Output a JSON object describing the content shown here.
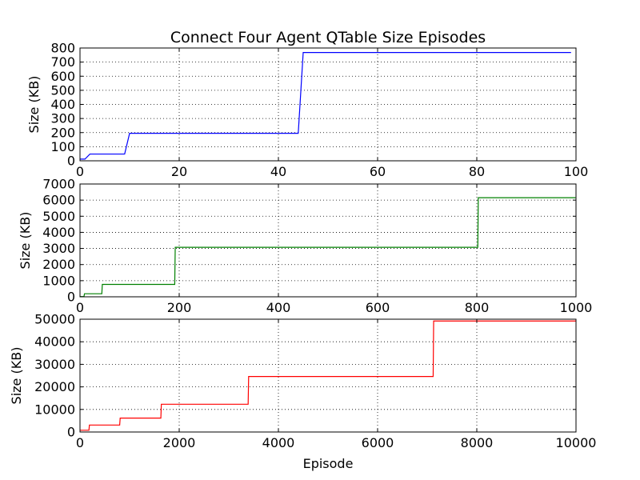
{
  "chart_data": {
    "title": "Connect Four Agent QTable Size Episodes",
    "xlabel": "Episode",
    "grid": true,
    "subplots": [
      {
        "type": "line",
        "step": true,
        "color": "#0000ff",
        "ylabel": "Size (KB)",
        "xlim": [
          0,
          100
        ],
        "ylim": [
          0,
          800
        ],
        "xticks": [
          0,
          20,
          40,
          60,
          80,
          100
        ],
        "yticks": [
          0,
          100,
          200,
          300,
          400,
          500,
          600,
          700,
          800
        ],
        "x": [
          0,
          1,
          2,
          9,
          10,
          44,
          45,
          99
        ],
        "y": [
          12,
          12,
          48,
          48,
          195,
          195,
          768,
          768
        ]
      },
      {
        "type": "line",
        "step": true,
        "color": "#008000",
        "ylabel": "Size (KB)",
        "xlim": [
          0,
          1000
        ],
        "ylim": [
          0,
          7000
        ],
        "xticks": [
          0,
          200,
          400,
          600,
          800,
          1000
        ],
        "yticks": [
          0,
          1000,
          2000,
          3000,
          4000,
          5000,
          6000,
          7000
        ],
        "x": [
          0,
          8,
          9,
          44,
          45,
          191,
          192,
          802,
          803,
          999
        ],
        "y": [
          12,
          12,
          190,
          190,
          770,
          770,
          3070,
          3070,
          6150,
          6150
        ]
      },
      {
        "type": "line",
        "step": true,
        "color": "#ff0000",
        "ylabel": "Size (KB)",
        "xlim": [
          0,
          10000
        ],
        "ylim": [
          0,
          50000
        ],
        "xticks": [
          0,
          2000,
          4000,
          6000,
          8000,
          10000
        ],
        "yticks": [
          0,
          10000,
          20000,
          30000,
          40000,
          50000
        ],
        "x": [
          0,
          180,
          190,
          800,
          810,
          1630,
          1640,
          3390,
          3400,
          7120,
          7130,
          9999
        ],
        "y": [
          770,
          770,
          3080,
          3080,
          6160,
          6160,
          12300,
          12300,
          24600,
          24600,
          49200,
          49200
        ]
      }
    ]
  }
}
